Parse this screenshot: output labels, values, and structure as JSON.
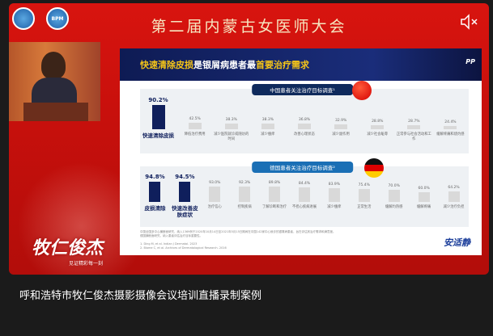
{
  "player": {
    "title": "第二届内蒙古女医师大会",
    "logo1": "",
    "logo2": "BPM",
    "brand": "牧仁俊杰",
    "brand_sub": "见证精彩每一刻",
    "mute_icon": "speaker-muted-icon"
  },
  "slide": {
    "title_highlight1": "快速清除皮损",
    "title_mid": "是银屑病患者最",
    "title_highlight2": "首要治疗需求",
    "corner_logo": "PP",
    "footer_logo": "安适静",
    "note1": "中国全国多中心横断面研究，纳入1369例于2020年10月14日至2021年5月15日期间在中国142家中心就诊的银屑病患者，旨在评估其治疗需求和满意度。",
    "note2": "德国横断面研究，纳入患者评估治疗目标重要性。",
    "ref1": "1. Ding M, et al. Indian J Dermatol. 2023",
    "ref2": "2. Blome C, et al. Archives of Dermatological Research. 2016"
  },
  "chart_data": [
    {
      "type": "bar",
      "title": "中国患者关注治疗目标调查¹",
      "categories": [
        "快速清除皮损",
        "降低治疗费用",
        "减少医院就诊或随访的时间",
        "减少瘙痒",
        "改善心理状态",
        "减少副作用",
        "减少社会耻辱",
        "正常参与社会活动和工作",
        "缓解疼痛和烧灼感"
      ],
      "values": [
        90.2,
        42.5,
        38.3,
        38.3,
        36.8,
        32.9,
        28.8,
        28.7,
        24.4
      ],
      "value_labels": [
        "90.2%",
        "42.5%",
        "38.3%",
        "38.3%",
        "36.8%",
        "32.9%",
        "28.8%",
        "28.7%",
        "24.4%"
      ],
      "highlight": [
        0
      ],
      "ylim": [
        0,
        100
      ]
    },
    {
      "type": "bar",
      "title": "德国患者关注治疗目标调查²",
      "categories": [
        "皮损清除",
        "快速改善皮肤症状",
        "治疗信心",
        "控制疾病",
        "了解诊断和治疗",
        "不担心疾病进展",
        "减少瘙痒",
        "正常生活",
        "缓解灼热感",
        "缓解疼痛",
        "减少治疗负担"
      ],
      "values": [
        94.8,
        94.5,
        93.0,
        92.3,
        89.8,
        84.4,
        83.9,
        75.4,
        70.0,
        60.0,
        64.2
      ],
      "value_labels": [
        "94.8%",
        "94.5%",
        "93.0%",
        "92.3%",
        "89.8%",
        "84.4%",
        "83.9%",
        "75.4%",
        "70.0%",
        "60.0%",
        "64.2%"
      ],
      "highlight": [
        0,
        1
      ],
      "ylim": [
        0,
        100
      ]
    }
  ],
  "colors": {
    "accent": "#0f1f5c",
    "bar": "#d9d9d9",
    "player_red": "#d8140f",
    "highlight_text": "#f5c518"
  },
  "caption": "呼和浩特市牧仁俊杰摄影摄像会议培训直播录制案例"
}
